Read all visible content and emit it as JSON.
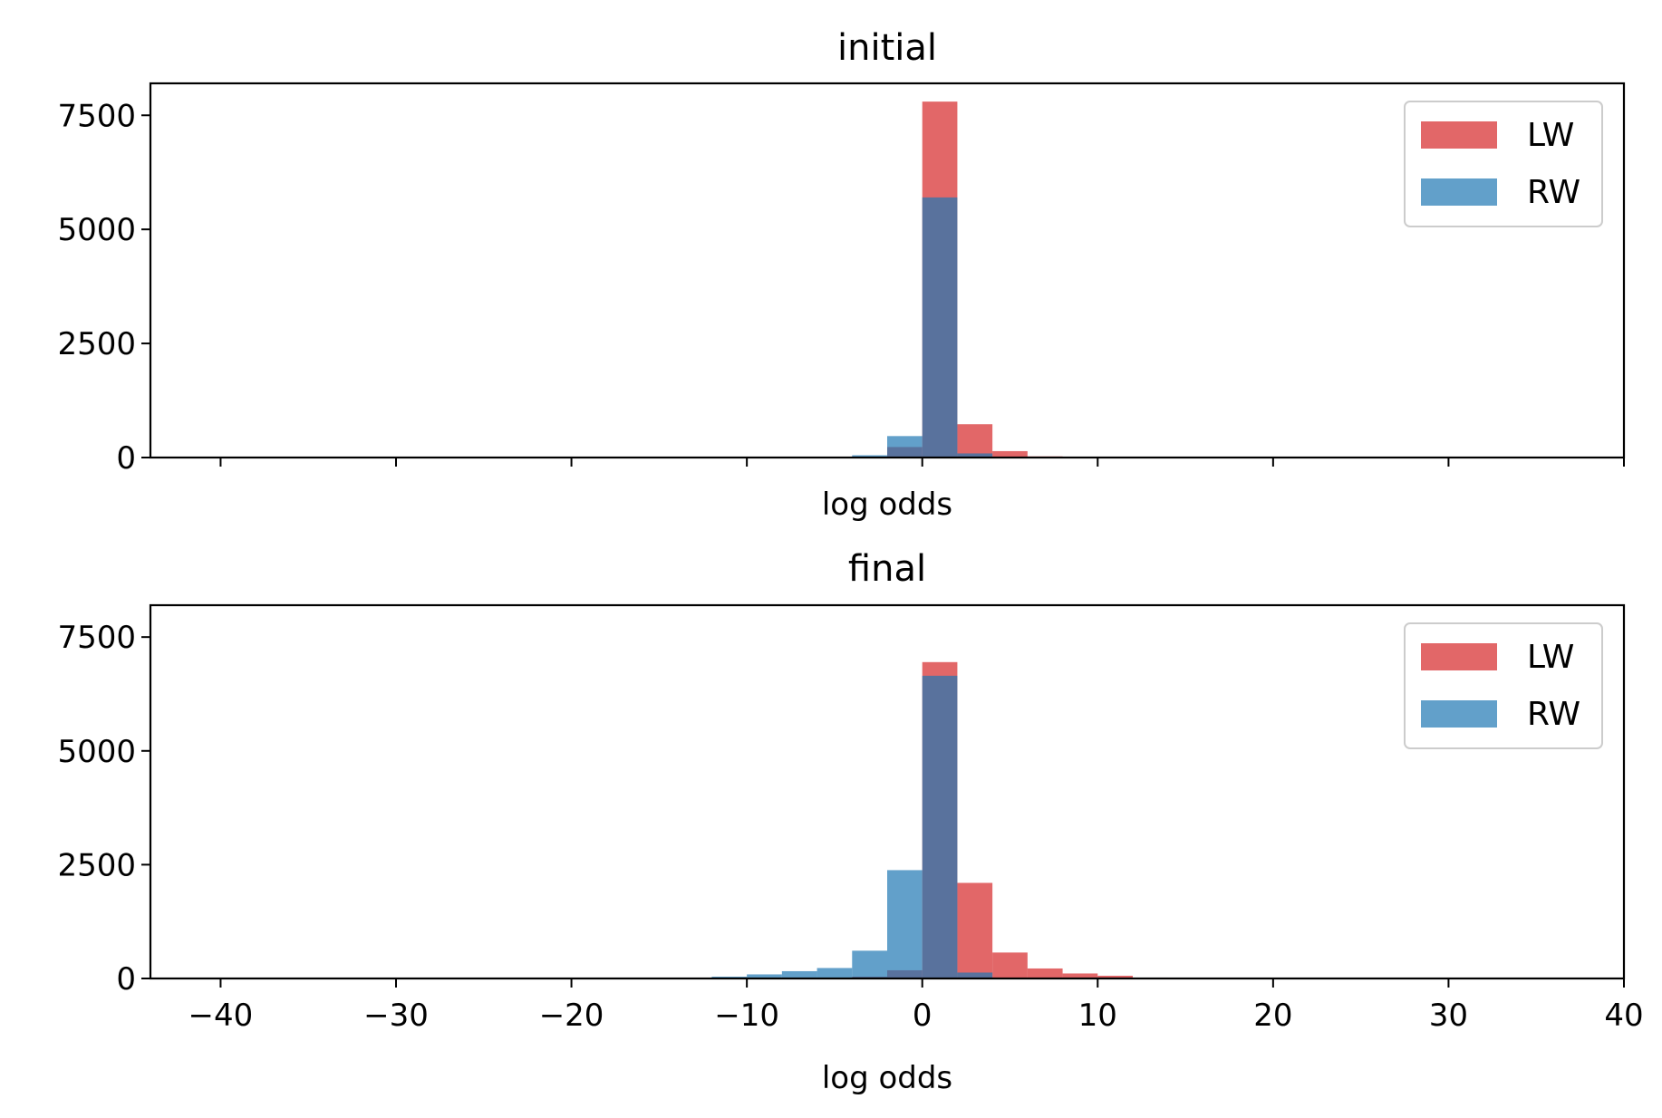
{
  "chart_data": [
    {
      "type": "bar",
      "title": "initial",
      "xlabel": "log odds",
      "ylabel": "",
      "xlim": [
        -44,
        40
      ],
      "ylim": [
        0,
        8200
      ],
      "x_ticks": [
        -40,
        -30,
        -20,
        -10,
        0,
        10,
        20,
        30,
        40
      ],
      "x_tick_labels_shown": false,
      "y_ticks": [
        0,
        2500,
        5000,
        7500
      ],
      "grid": false,
      "legend": "top-right",
      "bin_edges": [
        -14,
        -12,
        -10,
        -8,
        -6,
        -4,
        -2,
        0,
        2,
        4,
        6,
        8,
        10,
        12,
        14
      ],
      "series": [
        {
          "name": "LW",
          "color": "#d62728",
          "values": [
            0,
            0,
            0,
            0,
            0,
            5,
            230,
            7800,
            730,
            140,
            25,
            5,
            0,
            0
          ]
        },
        {
          "name": "RW",
          "color": "#1f77b4",
          "values": [
            0,
            0,
            0,
            0,
            10,
            50,
            470,
            5700,
            90,
            10,
            0,
            0,
            0,
            0
          ]
        }
      ]
    },
    {
      "type": "bar",
      "title": "final",
      "xlabel": "log odds",
      "ylabel": "",
      "xlim": [
        -44,
        40
      ],
      "ylim": [
        0,
        8200
      ],
      "x_ticks": [
        -40,
        -30,
        -20,
        -10,
        0,
        10,
        20,
        30,
        40
      ],
      "x_tick_labels_shown": true,
      "y_ticks": [
        0,
        2500,
        5000,
        7500
      ],
      "grid": false,
      "legend": "top-right",
      "bin_edges": [
        -14,
        -12,
        -10,
        -8,
        -6,
        -4,
        -2,
        0,
        2,
        4,
        6,
        8,
        10,
        12,
        14
      ],
      "series": [
        {
          "name": "LW",
          "color": "#d62728",
          "values": [
            0,
            0,
            5,
            10,
            20,
            40,
            180,
            6950,
            2100,
            570,
            220,
            110,
            60,
            20
          ]
        },
        {
          "name": "RW",
          "color": "#1f77b4",
          "values": [
            10,
            40,
            90,
            160,
            230,
            610,
            2380,
            6650,
            130,
            20,
            5,
            0,
            0,
            0
          ]
        }
      ]
    }
  ]
}
